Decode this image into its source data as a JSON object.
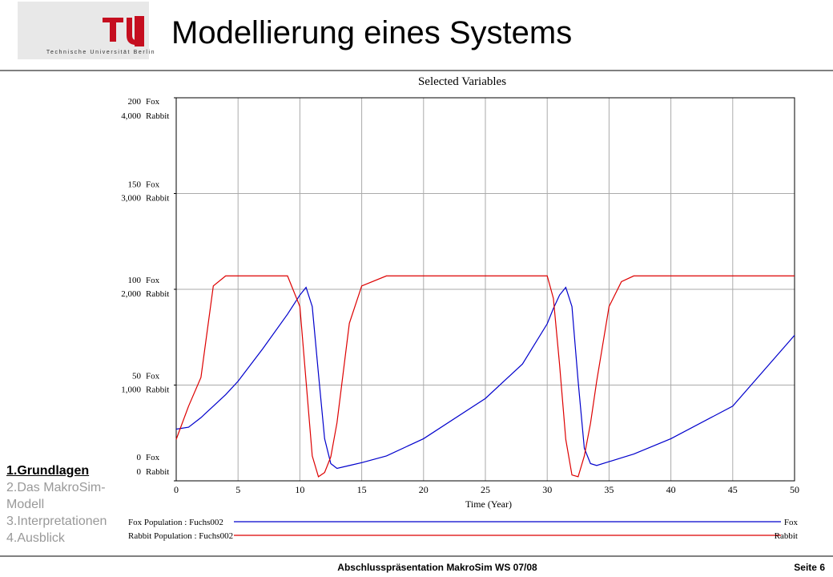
{
  "header": {
    "title": "Modellierung eines Systems",
    "logo_text": "Technische Universität Berlin"
  },
  "nav": [
    "1.Grundlagen",
    "2.Das MakroSim-Modell",
    "3.Interpretationen",
    "4.Ausblick"
  ],
  "footer": {
    "text": "Abschlusspräsentation MakroSim WS 07/08",
    "page": "Seite 6"
  },
  "chart_data": {
    "type": "line",
    "title": "Selected Variables",
    "x_label": "Time (Year)",
    "x": [
      0,
      1,
      2,
      3,
      4,
      5,
      7,
      9,
      10,
      10.5,
      11,
      11.5,
      12,
      12.5,
      13,
      14,
      15,
      17,
      20,
      25,
      28,
      30,
      30.5,
      31,
      31.5,
      32,
      32.5,
      33,
      33.5,
      34,
      35,
      36,
      37,
      40,
      45,
      50
    ],
    "series": [
      {
        "name": "Fox",
        "label": "Fox Population : Fuchs002",
        "color": "#0000cc",
        "values": [
          27,
          28,
          33,
          39,
          45,
          52,
          69,
          87,
          97,
          101,
          91,
          56,
          22,
          9,
          6.5,
          8,
          9.5,
          13,
          22,
          43,
          61,
          82,
          90,
          97,
          101,
          91,
          52,
          17,
          9,
          8,
          10,
          12,
          14,
          22,
          39,
          76
        ]
      },
      {
        "name": "Rabbit",
        "label": "Rabbit Population : Fuchs002",
        "color": "#dd0000",
        "axis": "y2",
        "values": [
          433,
          780,
          1080,
          2035,
          2140,
          2140,
          2140,
          2140,
          1820,
          1040,
          260,
          43,
          87,
          250,
          606,
          1645,
          2035,
          2140,
          2140,
          2140,
          2140,
          2140,
          1905,
          1212,
          433,
          61,
          43,
          260,
          600,
          1040,
          1820,
          2080,
          2140,
          2140,
          2140,
          2140
        ]
      }
    ],
    "xlim": [
      0,
      50
    ],
    "xticks": [
      0,
      5,
      10,
      15,
      20,
      25,
      30,
      35,
      40,
      45,
      50
    ],
    "ylim": [
      0,
      200
    ],
    "yticks": [
      0,
      50,
      100,
      150,
      200
    ],
    "y2lim": [
      0,
      4000
    ],
    "y2ticks": [
      0,
      {
        "value": 1000,
        "label": "1,000"
      },
      {
        "value": 2000,
        "label": "2,000"
      },
      {
        "value": 3000,
        "label": "3,000"
      },
      {
        "value": 4000,
        "label": "4,000"
      }
    ],
    "grid": true
  }
}
